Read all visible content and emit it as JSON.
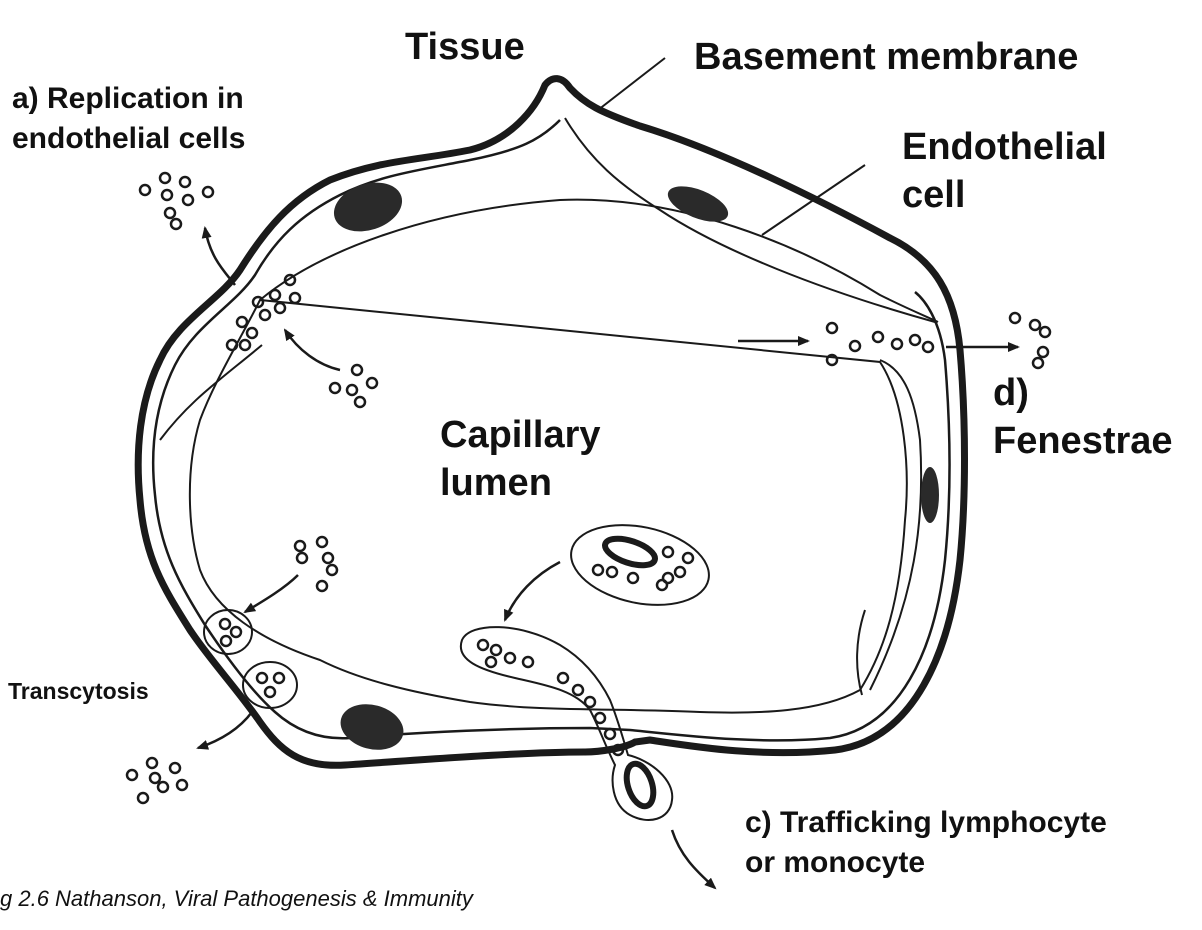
{
  "labels": {
    "tissue": "Tissue",
    "basement_membrane": "Basement membrane",
    "endothelial_cell_line1": "Endothelial",
    "endothelial_cell_line2": "cell",
    "replication_line1": "a) Replication in",
    "replication_line2": "endothelial cells",
    "capillary_line1": "Capillary",
    "capillary_line2": "lumen",
    "fenestrae_line1": "d)",
    "fenestrae_line2": "Fenestrae",
    "transcytosis": "Transcytosis",
    "trafficking_line1": "c) Trafficking lymphocyte",
    "trafficking_line2": "or monocyte"
  },
  "caption": "g 2.6 Nathanson, Viral Pathogenesis & Immunity",
  "colors": {
    "ink": "#1a1a1a",
    "nucleus": "#2a2a2a",
    "background": "#ffffff"
  }
}
